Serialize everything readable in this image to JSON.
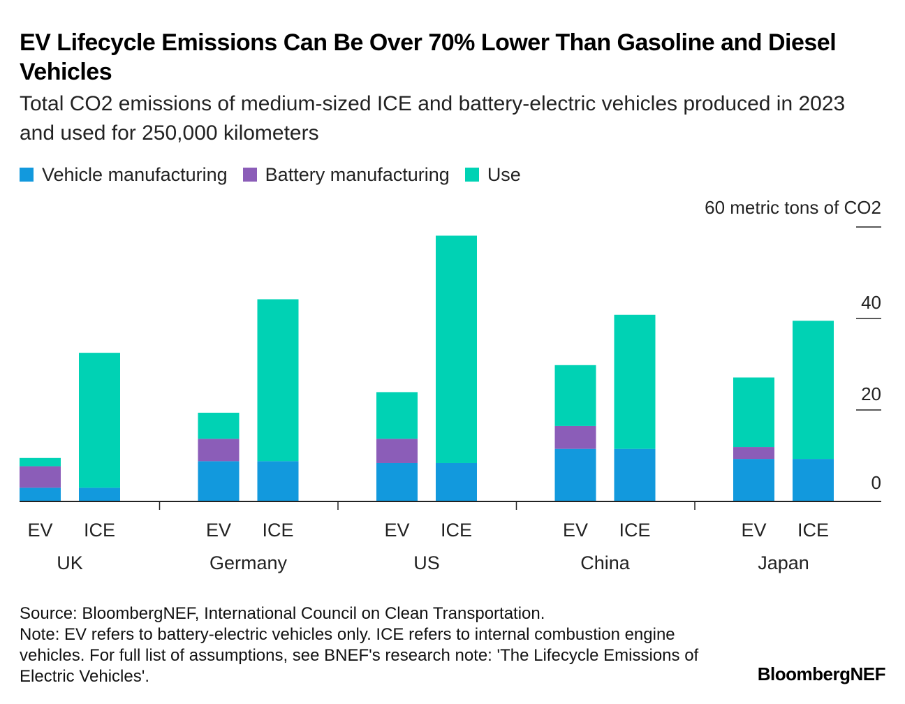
{
  "title": "EV Lifecycle Emissions Can Be Over 70% Lower Than Gasoline and Diesel Vehicles",
  "subtitle": "Total CO2 emissions of medium-sized ICE and battery-electric vehicles produced in 2023 and used for 250,000 kilometers",
  "legend": [
    {
      "label": "Vehicle manufacturing",
      "color": "#1299dd"
    },
    {
      "label": "Battery manufacturing",
      "color": "#8b5db8"
    },
    {
      "label": "Use",
      "color": "#00d2b4"
    }
  ],
  "footer": {
    "source": "Source: BloombergNEF, International Council on Clean Transportation.",
    "note": "Note: EV refers to battery-electric vehicles only. ICE refers to internal combustion engine vehicles. For full list of assumptions, see BNEF's research note: 'The Lifecycle Emissions of Electric Vehicles'."
  },
  "brand": "BloombergNEF",
  "chart_data": {
    "type": "bar",
    "stacked": true,
    "ylabel": "60 metric tons of CO2",
    "ylim": [
      0,
      60
    ],
    "yticks": [
      "0",
      "20",
      "40"
    ],
    "groups": [
      "UK",
      "Germany",
      "US",
      "China",
      "Japan"
    ],
    "bar_labels": [
      "EV",
      "ICE"
    ],
    "series": [
      {
        "name": "Vehicle manufacturing",
        "values": [
          [
            3.0,
            3.0
          ],
          [
            8.8,
            8.8
          ],
          [
            8.4,
            8.4
          ],
          [
            11.5,
            11.5
          ],
          [
            9.3,
            9.3
          ]
        ]
      },
      {
        "name": "Battery manufacturing",
        "values": [
          [
            4.7,
            0
          ],
          [
            4.9,
            0
          ],
          [
            5.3,
            0
          ],
          [
            5.0,
            0
          ],
          [
            2.6,
            0
          ]
        ]
      },
      {
        "name": "Use",
        "values": [
          [
            1.8,
            29.5
          ],
          [
            5.7,
            35.4
          ],
          [
            10.2,
            49.7
          ],
          [
            13.3,
            29.3
          ],
          [
            15.2,
            30.2
          ]
        ]
      }
    ]
  }
}
